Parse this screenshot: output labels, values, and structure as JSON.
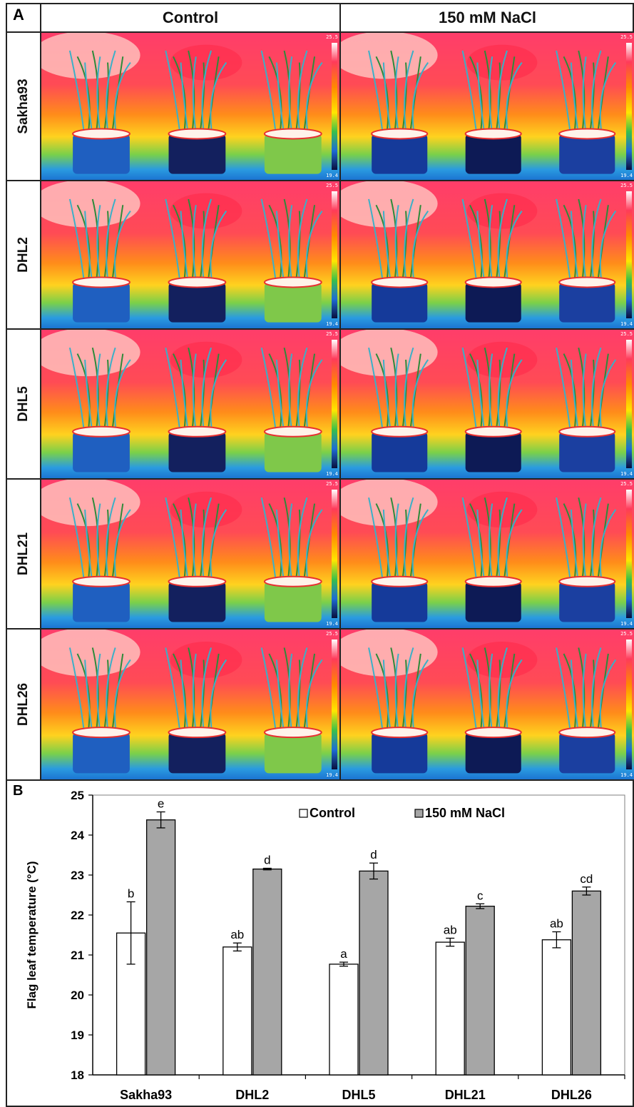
{
  "panel_a": {
    "letter": "A",
    "columns": [
      "Control",
      "150 mM NaCl"
    ],
    "rows": [
      "Sakha93",
      "DHL2",
      "DHL5",
      "DHL21",
      "DHL26"
    ],
    "colorbar_top": "25.5",
    "colorbar_bottom": "19.4"
  },
  "panel_b": {
    "letter": "B"
  },
  "chart_data": {
    "type": "bar",
    "categories": [
      "Sakha93",
      "DHL2",
      "DHL5",
      "DHL21",
      "DHL26"
    ],
    "series": [
      {
        "name": "Control",
        "color": "#ffffff",
        "values": [
          21.55,
          21.2,
          20.77,
          21.32,
          21.38
        ],
        "errors": [
          0.78,
          0.1,
          0.05,
          0.1,
          0.2
        ],
        "letters": [
          "b",
          "ab",
          "a",
          "ab",
          "ab"
        ]
      },
      {
        "name": "150 mM NaCl",
        "color": "#a6a6a6",
        "values": [
          24.38,
          23.15,
          23.1,
          22.22,
          22.6
        ],
        "errors": [
          0.2,
          0.02,
          0.2,
          0.06,
          0.1
        ],
        "letters": [
          "e",
          "d",
          "d",
          "c",
          "cd"
        ]
      }
    ],
    "title": "",
    "xlabel": "",
    "ylabel": "Flag leaf temperature (°C)",
    "ylim": [
      18,
      25
    ],
    "yticks": [
      "18",
      "19",
      "20",
      "21",
      "22",
      "23",
      "24",
      "25"
    ],
    "grid": false,
    "legend_position": "top-right"
  }
}
